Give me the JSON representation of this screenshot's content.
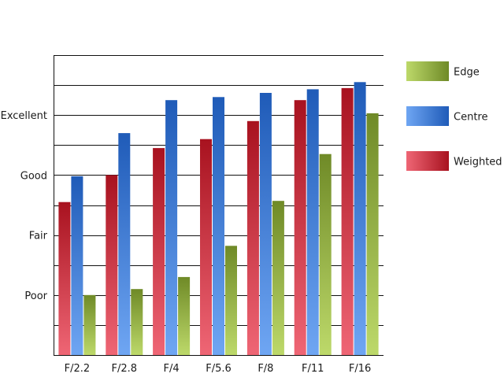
{
  "chart_data": {
    "type": "bar",
    "categories": [
      "F/2.2",
      "F/2.8",
      "F/4",
      "F/5.6",
      "F/8",
      "F/11",
      "F/16"
    ],
    "series": [
      {
        "name": "Weighted",
        "values": [
          2.55,
          3.0,
          3.45,
          3.6,
          3.9,
          4.25,
          4.45
        ]
      },
      {
        "name": "Centre",
        "values": [
          2.98,
          3.7,
          4.25,
          4.3,
          4.37,
          4.43,
          4.55
        ]
      },
      {
        "name": "Edge",
        "values": [
          1.0,
          1.1,
          1.3,
          1.82,
          2.57,
          3.35,
          4.03
        ]
      }
    ],
    "ylim": [
      0,
      5
    ],
    "y_tick_labels": [
      {
        "value": 1,
        "label": "Poor"
      },
      {
        "value": 2,
        "label": "Fair"
      },
      {
        "value": 3,
        "label": "Good"
      },
      {
        "value": 4,
        "label": "Excellent"
      }
    ],
    "grid": "horizontal, every 0.5",
    "legend": {
      "placement": "right",
      "order": [
        "Edge",
        "Centre",
        "Weighted"
      ]
    },
    "colors": {
      "Weighted": {
        "dark": "#a8121f",
        "light": "#ef6675"
      },
      "Centre": {
        "dark": "#1f5bb8",
        "light": "#6fa6f3"
      },
      "Edge": {
        "dark": "#6f8a27",
        "light": "#bdd96a"
      }
    },
    "title": "",
    "xlabel": "",
    "ylabel": ""
  }
}
